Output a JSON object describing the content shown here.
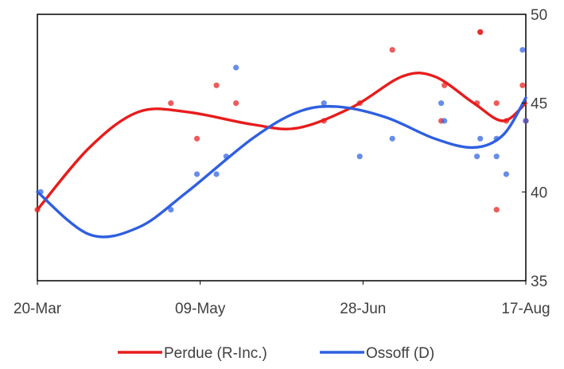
{
  "chart_data": {
    "type": "scatter",
    "x_ticks": [
      "20-Mar",
      "09-May",
      "28-Jun",
      "17-Aug"
    ],
    "y_ticks": [
      "35",
      "40",
      "45",
      "50"
    ],
    "xlim": [
      "2020-03-20",
      "2020-08-17"
    ],
    "ylim": [
      35,
      50
    ],
    "y_axis_position": "right",
    "grid": false,
    "legend_position": "bottom",
    "series": [
      {
        "name": "Perdue (R-Inc.)",
        "color": "#E81C1C",
        "points": [
          [
            "2020-03-20",
            39
          ],
          [
            "2020-04-30",
            45
          ],
          [
            "2020-05-08",
            43
          ],
          [
            "2020-05-14",
            46
          ],
          [
            "2020-05-20",
            45
          ],
          [
            "2020-06-16",
            44
          ],
          [
            "2020-06-27",
            45
          ],
          [
            "2020-07-07",
            48
          ],
          [
            "2020-07-22",
            44
          ],
          [
            "2020-07-23",
            46
          ],
          [
            "2020-08-03",
            49
          ],
          [
            "2020-08-03",
            49
          ],
          [
            "2020-08-02",
            45
          ],
          [
            "2020-08-08",
            45
          ],
          [
            "2020-08-08",
            39
          ],
          [
            "2020-08-11",
            44
          ],
          [
            "2020-08-16",
            46
          ],
          [
            "2020-08-17",
            44
          ]
        ],
        "trend": [
          [
            "2020-03-20",
            39
          ],
          [
            "2020-04-05",
            42.5
          ],
          [
            "2020-04-20",
            44.5
          ],
          [
            "2020-05-05",
            44.5
          ],
          [
            "2020-05-25",
            43.8
          ],
          [
            "2020-06-08",
            43.6
          ],
          [
            "2020-06-25",
            44.8
          ],
          [
            "2020-07-10",
            46.5
          ],
          [
            "2020-07-20",
            46.5
          ],
          [
            "2020-08-01",
            45
          ],
          [
            "2020-08-10",
            44
          ],
          [
            "2020-08-17",
            45
          ]
        ]
      },
      {
        "name": "Ossoff (D)",
        "color": "#2F5FE0",
        "points": [
          [
            "2020-03-21",
            40
          ],
          [
            "2020-04-30",
            39
          ],
          [
            "2020-05-08",
            41
          ],
          [
            "2020-05-14",
            41
          ],
          [
            "2020-05-17",
            42
          ],
          [
            "2020-05-20",
            47
          ],
          [
            "2020-06-16",
            45
          ],
          [
            "2020-06-27",
            42
          ],
          [
            "2020-07-07",
            43
          ],
          [
            "2020-07-22",
            45
          ],
          [
            "2020-07-23",
            44
          ],
          [
            "2020-08-02",
            42
          ],
          [
            "2020-08-03",
            43
          ],
          [
            "2020-08-08",
            42
          ],
          [
            "2020-08-08",
            43
          ],
          [
            "2020-08-11",
            41
          ],
          [
            "2020-08-16",
            48
          ],
          [
            "2020-08-17",
            44
          ]
        ],
        "trend": [
          [
            "2020-03-20",
            40
          ],
          [
            "2020-04-05",
            37.6
          ],
          [
            "2020-04-20",
            38
          ],
          [
            "2020-05-05",
            40
          ],
          [
            "2020-05-25",
            43
          ],
          [
            "2020-06-08",
            44.5
          ],
          [
            "2020-06-20",
            44.8
          ],
          [
            "2020-07-05",
            44.2
          ],
          [
            "2020-07-20",
            43
          ],
          [
            "2020-08-01",
            42.5
          ],
          [
            "2020-08-10",
            43.2
          ],
          [
            "2020-08-17",
            45.3
          ]
        ]
      }
    ]
  }
}
